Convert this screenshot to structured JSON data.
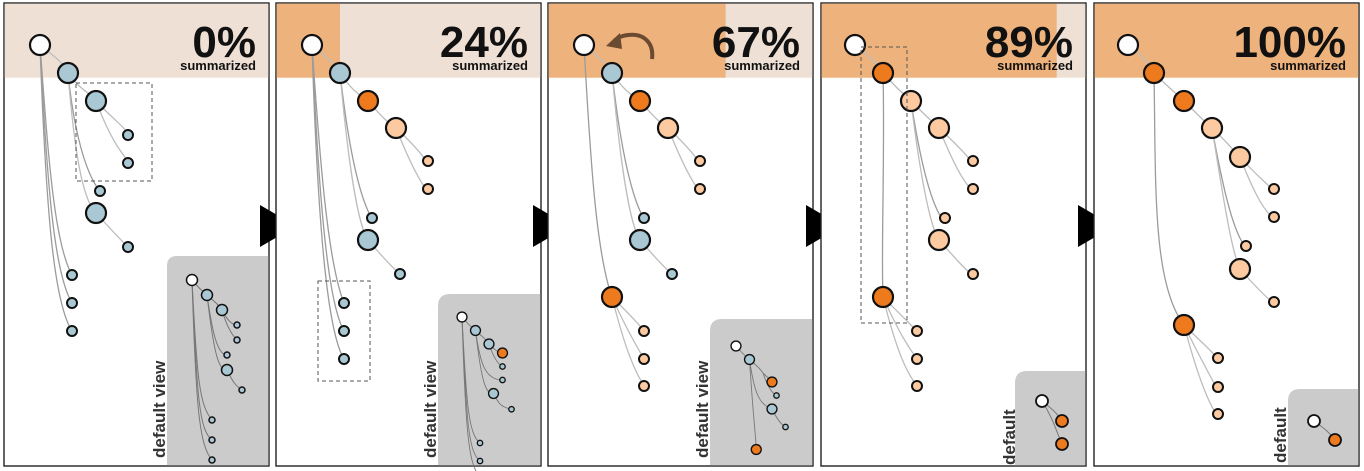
{
  "colors": {
    "unsummarized": "#aac8d3",
    "summarized": "#ee7a1e",
    "partial": "#fcc9a0",
    "root": "#ffffff",
    "header_filled": "#eeb27d",
    "header_empty": "#efe0d5",
    "inset": "#cbcbcb"
  },
  "panels": [
    {
      "percent": "0%",
      "sublabel": "summarized",
      "progress": 0.0,
      "inset_label": "default view"
    },
    {
      "percent": "24%",
      "sublabel": "summarized",
      "progress": 0.24,
      "inset_label": "default view"
    },
    {
      "percent": "67%",
      "sublabel": "summarized",
      "progress": 0.67,
      "inset_label": "default view"
    },
    {
      "percent": "89%",
      "sublabel": "summarized",
      "progress": 0.89,
      "inset_label": "default"
    },
    {
      "percent": "100%",
      "sublabel": "summarized",
      "progress": 1.0,
      "inset_label": "default"
    }
  ],
  "arrow_icon": "play-triangle-icon"
}
